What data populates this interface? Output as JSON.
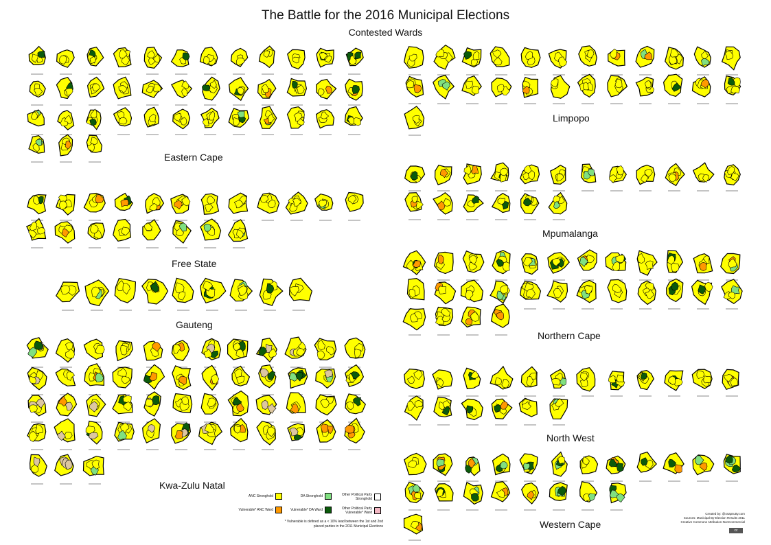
{
  "title": "The Battle for the 2016 Municipal Elections",
  "subtitle": "Contested Wards",
  "provinces": [
    {
      "name": "Eastern Cape",
      "color_mix": [
        0.78,
        0.04,
        0.06,
        0.12
      ]
    },
    {
      "name": "Free State",
      "color_mix": [
        0.8,
        0.05,
        0.05,
        0.1
      ]
    },
    {
      "name": "Gauteng",
      "color_mix": [
        0.6,
        0.05,
        0.1,
        0.25
      ]
    },
    {
      "name": "Kwa-Zulu Natal",
      "color_mix": [
        0.62,
        0.12,
        0.03,
        0.08,
        0.15
      ]
    },
    {
      "name": "Limpopo",
      "color_mix": [
        0.82,
        0.03,
        0.08,
        0.07
      ]
    },
    {
      "name": "Mpumalanga",
      "color_mix": [
        0.8,
        0.07,
        0.06,
        0.07
      ]
    },
    {
      "name": "Northern Cape",
      "color_mix": [
        0.7,
        0.1,
        0.1,
        0.1
      ]
    },
    {
      "name": "North West",
      "color_mix": [
        0.78,
        0.04,
        0.06,
        0.12
      ]
    },
    {
      "name": "Western Cape",
      "color_mix": [
        0.3,
        0.18,
        0.35,
        0.17
      ]
    }
  ],
  "legend": {
    "items": [
      {
        "label": "ANC Stronghold",
        "color": "#ffff00"
      },
      {
        "label": "Vulnerable* ANC Ward",
        "color": "#ff9900"
      },
      {
        "label": "DA Stronghold",
        "color": "#80e080"
      },
      {
        "label": "Vulnerable* DA Ward",
        "color": "#0b5a0b"
      },
      {
        "label": "Other Political Party Stronghold",
        "color": "#ffffff"
      },
      {
        "label": "Other Political Party Vulnerable* Ward",
        "color": "#f4b8c4"
      }
    ],
    "note": "* Vulnerable is defined as a < 10% lead between the 1st and 2nd placed parties in the 2011 Municipal Elections"
  },
  "credits": {
    "created_by": "Created by: @osapsutty.com",
    "sources": "Sources: Municipal By-Election Results 2011",
    "license": "Creative Commons Attribution-NonCommercial",
    "badge": "cc"
  },
  "colors": {
    "anc": "#ffff00",
    "anc_vulnerable": "#ff9900",
    "da": "#80e080",
    "da_vulnerable": "#0b5a0b",
    "other_vulnerable": "#f4b8c4",
    "ifp_tan": "#dcc6a0",
    "border": "#000000"
  }
}
